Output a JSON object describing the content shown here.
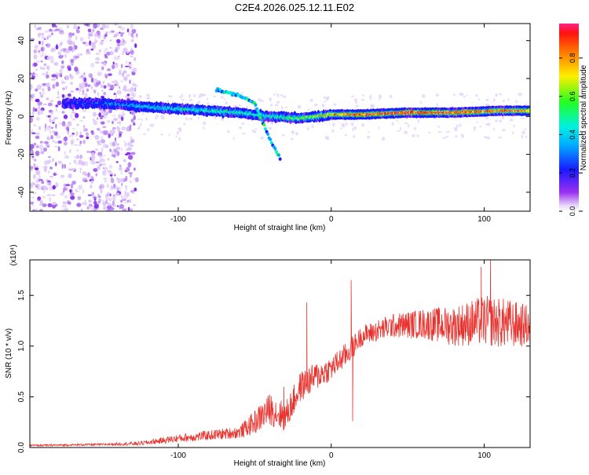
{
  "title": "C2E4.2026.025.12.11.E02",
  "chart_data": [
    {
      "type": "heatmap",
      "xlabel": "Height of straight line (km)",
      "ylabel": "Frequency (Hz)",
      "xlim": [
        -197,
        130
      ],
      "ylim": [
        -50,
        49
      ],
      "xticks": [
        -100,
        0,
        100
      ],
      "yticks": [
        -40,
        -20,
        0,
        20,
        40
      ],
      "colorbar": {
        "label": "Normalized spectral amplitude",
        "range": [
          0,
          0.98
        ],
        "ticks": [
          0.0,
          0.2,
          0.4,
          0.6,
          0.8
        ]
      },
      "description_ridge": [
        {
          "x": -170,
          "freq": 7,
          "amp": 0.2
        },
        {
          "x": -150,
          "freq": 7,
          "amp": 0.22
        },
        {
          "x": -120,
          "freq": 5,
          "amp": 0.35
        },
        {
          "x": -100,
          "freq": 4,
          "amp": 0.4
        },
        {
          "x": -80,
          "freq": 3,
          "amp": 0.45
        },
        {
          "x": -60,
          "freq": 2,
          "amp": 0.45
        },
        {
          "x": -40,
          "freq": 0,
          "amp": 0.4
        },
        {
          "x": -20,
          "freq": -1,
          "amp": 0.55
        },
        {
          "x": 0,
          "freq": 1,
          "amp": 0.7
        },
        {
          "x": 20,
          "freq": 1,
          "amp": 0.9
        },
        {
          "x": 50,
          "freq": 2,
          "amp": 0.95
        },
        {
          "x": 80,
          "freq": 2,
          "amp": 0.9
        },
        {
          "x": 110,
          "freq": 3,
          "amp": 0.85
        },
        {
          "x": 130,
          "freq": 3,
          "amp": 0.85
        }
      ],
      "description_branch": [
        {
          "x": -75,
          "freq": 14
        },
        {
          "x": -60,
          "freq": 11
        },
        {
          "x": -50,
          "freq": 7
        },
        {
          "x": -40,
          "freq": -12
        },
        {
          "x": -33,
          "freq": -23
        }
      ]
    },
    {
      "type": "line",
      "xlabel": "Height of straight line (km)",
      "ylabel": "SNR (10 * v/v)",
      "yscale_label": "(x10⁴)",
      "xlim": [
        -197,
        130
      ],
      "ylim": [
        0,
        1.85
      ],
      "xticks": [
        -100,
        0,
        100
      ],
      "yticks": [
        0.0,
        0.5,
        1.0,
        1.5
      ],
      "color": "#e8322d",
      "envelope_x": [
        -197,
        -150,
        -125,
        -100,
        -80,
        -60,
        -50,
        -40,
        -30,
        -25,
        -20,
        -10,
        0,
        10,
        20,
        40,
        60,
        80,
        100,
        115,
        130
      ],
      "envelope_mean": [
        0.02,
        0.03,
        0.04,
        0.09,
        0.12,
        0.15,
        0.25,
        0.38,
        0.3,
        0.45,
        0.6,
        0.7,
        0.78,
        0.92,
        1.1,
        1.2,
        1.22,
        1.2,
        1.25,
        1.22,
        1.2
      ],
      "envelope_spread": [
        0.01,
        0.01,
        0.02,
        0.04,
        0.05,
        0.06,
        0.12,
        0.16,
        0.15,
        0.15,
        0.15,
        0.14,
        0.12,
        0.12,
        0.1,
        0.12,
        0.15,
        0.2,
        0.25,
        0.25,
        0.2
      ],
      "spikes": [
        {
          "x": -16,
          "value": 1.43
        },
        {
          "x": -31,
          "value": 0.6
        },
        {
          "x": 13,
          "value": 1.65
        },
        {
          "x": 14,
          "value": 0.26
        },
        {
          "x": 104,
          "value": 1.85
        },
        {
          "x": 98,
          "value": 1.78
        }
      ]
    }
  ]
}
